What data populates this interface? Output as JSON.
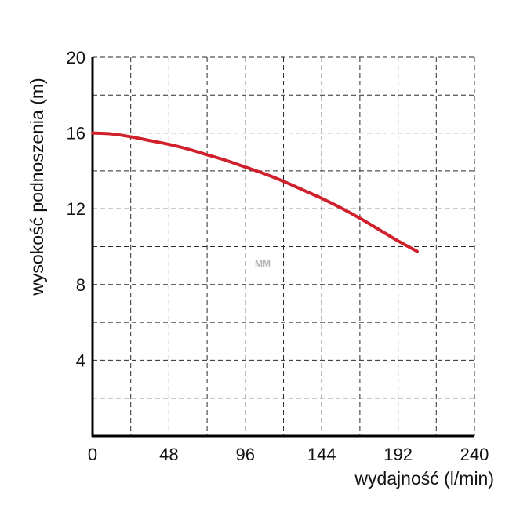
{
  "chart_data": {
    "type": "line",
    "xlabel": "wydajność (l/min)",
    "ylabel": "wysokość podnoszenia (m)",
    "xlim": [
      0,
      240
    ],
    "ylim": [
      0,
      20
    ],
    "x_ticks": [
      "0",
      "48",
      "96",
      "144",
      "192",
      "240"
    ],
    "y_ticks": [
      "4",
      "8",
      "12",
      "16",
      "20"
    ],
    "grid": true,
    "grid_style": "dashed",
    "series": [
      {
        "color": "#d0202c",
        "x": [
          0,
          12,
          24,
          36,
          48,
          60,
          72,
          84,
          96,
          108,
          120,
          132,
          144,
          156,
          168,
          180,
          192,
          204
        ],
        "y": [
          16.0,
          15.95,
          15.8,
          15.6,
          15.4,
          15.15,
          14.85,
          14.55,
          14.2,
          13.85,
          13.45,
          13.0,
          12.55,
          12.05,
          11.5,
          10.9,
          10.3,
          9.75
        ]
      }
    ]
  },
  "watermark": "MM"
}
